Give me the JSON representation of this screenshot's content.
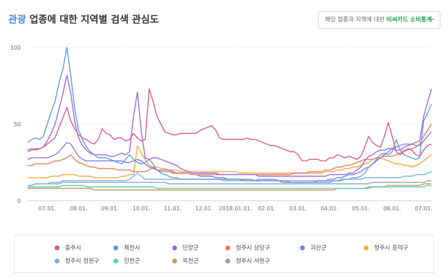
{
  "header": {
    "title_keyword": "관광",
    "title_rest": " 업종에 대한 지역별 검색 관심도",
    "link_prefix": "해당 업종과 지역에 대한 ",
    "link_highlight": "비씨카드 소비통계",
    "link_arrow": ">"
  },
  "chart_data": {
    "type": "line",
    "title": "",
    "xlabel": "",
    "ylabel": "",
    "ylim": [
      0,
      100
    ],
    "yticks": [
      0,
      50,
      100
    ],
    "x_tick_labels": [
      "07.01.",
      "08.01.",
      "09.01.",
      "10.01.",
      "11.01.",
      "12.01.",
      "2018.01.01.",
      "02.01.",
      "03.01.",
      "04.01.",
      "05.01.",
      "06.01.",
      "07.01."
    ],
    "x_tick_index": [
      5,
      13,
      21,
      29,
      37,
      45,
      53,
      61,
      69,
      77,
      85,
      93,
      101
    ],
    "grid": "horizontal-dashed",
    "legend_position": "bottom",
    "series": [
      {
        "name": "충주시",
        "color": "#d9568a",
        "values": [
          33,
          34,
          33,
          34,
          35,
          37,
          39,
          41,
          48,
          54,
          61,
          52,
          47,
          43,
          41,
          40,
          38,
          37,
          40,
          47,
          44,
          43,
          40,
          41,
          41,
          39,
          40,
          44,
          41,
          39,
          40,
          73,
          65,
          55,
          50,
          45,
          44,
          43,
          43,
          44,
          44,
          44,
          44,
          44,
          46,
          47,
          48,
          49,
          46,
          41,
          40,
          40,
          40,
          40,
          40,
          40,
          41,
          40,
          40,
          39,
          38,
          37,
          36,
          36,
          35,
          34,
          33,
          32,
          32,
          30,
          26,
          26,
          27,
          27,
          27,
          26,
          26,
          28,
          28,
          30,
          29,
          28,
          29,
          28,
          27,
          29,
          35,
          42,
          38,
          36,
          35,
          42,
          51,
          42,
          32,
          30,
          32,
          34,
          33,
          30,
          29,
          33,
          36,
          37
        ]
      },
      {
        "name": "제천시",
        "color": "#5b9be0",
        "values": [
          38,
          40,
          41,
          40,
          42,
          50,
          58,
          65,
          77,
          86,
          100,
          82,
          60,
          46,
          40,
          35,
          32,
          30,
          28,
          28,
          28,
          27,
          26,
          25,
          24,
          27,
          30,
          27,
          25,
          24,
          25,
          27,
          24,
          20,
          18,
          17,
          16,
          15,
          15,
          14,
          14,
          14,
          14,
          14,
          14,
          14,
          14,
          14,
          14,
          14,
          14,
          14,
          14,
          14,
          14,
          13,
          13,
          13,
          13,
          14,
          14,
          14,
          14,
          14,
          13,
          13,
          13,
          12,
          12,
          12,
          12,
          12,
          12,
          12,
          12,
          12,
          12,
          12,
          13,
          13,
          13,
          14,
          14,
          15,
          15,
          16,
          18,
          22,
          24,
          27,
          30,
          31,
          30,
          32,
          40,
          33,
          30,
          29,
          28,
          27,
          28,
          52,
          57,
          63
        ]
      },
      {
        "name": "단양군",
        "color": "#9b65dd",
        "values": [
          32,
          33,
          34,
          34,
          35,
          39,
          44,
          50,
          60,
          70,
          82,
          70,
          52,
          41,
          36,
          33,
          31,
          30,
          30,
          30,
          30,
          29,
          29,
          30,
          31,
          30,
          32,
          55,
          71,
          45,
          28,
          27,
          28,
          28,
          27,
          26,
          25,
          24,
          23,
          21,
          20,
          19,
          18,
          18,
          18,
          18,
          18,
          18,
          18,
          17,
          17,
          17,
          17,
          17,
          17,
          17,
          17,
          17,
          17,
          16,
          16,
          16,
          16,
          16,
          16,
          16,
          16,
          16,
          16,
          16,
          16,
          16,
          16,
          16,
          16,
          16,
          16,
          17,
          17,
          17,
          17,
          17,
          18,
          18,
          20,
          22,
          26,
          29,
          30,
          32,
          33,
          33,
          34,
          34,
          33,
          33,
          35,
          36,
          37,
          38,
          39,
          55,
          64,
          73
        ]
      },
      {
        "name": "청주시 상당구",
        "color": "#e8775f",
        "values": [
          23,
          23,
          24,
          24,
          24,
          24,
          25,
          26,
          26,
          27,
          28,
          30,
          27,
          25,
          24,
          23,
          22,
          22,
          21,
          21,
          21,
          21,
          21,
          20,
          20,
          20,
          20,
          19,
          19,
          19,
          19,
          20,
          22,
          20,
          19,
          19,
          19,
          18,
          18,
          18,
          18,
          18,
          17,
          17,
          17,
          17,
          17,
          17,
          17,
          17,
          17,
          17,
          17,
          17,
          17,
          17,
          17,
          17,
          17,
          17,
          17,
          17,
          17,
          17,
          17,
          17,
          17,
          17,
          18,
          18,
          18,
          18,
          19,
          19,
          19,
          19,
          20,
          20,
          21,
          22,
          22,
          23,
          23,
          24,
          25,
          26,
          27,
          27,
          27,
          28,
          28,
          29,
          29,
          29,
          30,
          31,
          33,
          33,
          34,
          35,
          37,
          42,
          46,
          50
        ]
      },
      {
        "name": "괴산군",
        "color": "#7b7be0",
        "values": [
          27,
          28,
          28,
          28,
          28,
          28,
          29,
          30,
          32,
          35,
          38,
          37,
          33,
          29,
          27,
          26,
          26,
          26,
          26,
          26,
          26,
          26,
          26,
          26,
          26,
          25,
          25,
          26,
          27,
          26,
          24,
          22,
          21,
          20,
          20,
          20,
          20,
          19,
          18,
          18,
          18,
          18,
          17,
          17,
          16,
          16,
          16,
          16,
          15,
          15,
          15,
          14,
          14,
          14,
          14,
          14,
          14,
          14,
          13,
          13,
          13,
          13,
          13,
          13,
          13,
          12,
          12,
          12,
          12,
          12,
          12,
          12,
          12,
          12,
          13,
          13,
          13,
          14,
          14,
          15,
          15,
          16,
          17,
          17,
          18,
          19,
          21,
          22,
          24,
          26,
          28,
          30,
          32,
          34,
          35,
          36,
          37,
          37,
          37,
          36,
          36,
          39,
          42,
          45
        ]
      },
      {
        "name": "청주시 흥덕구",
        "color": "#efa93d",
        "values": [
          15,
          15,
          15,
          15,
          15,
          15,
          16,
          16,
          16,
          17,
          17,
          17,
          17,
          16,
          16,
          16,
          16,
          15,
          15,
          15,
          15,
          15,
          15,
          15,
          16,
          16,
          17,
          17,
          36,
          31,
          27,
          23,
          22,
          22,
          21,
          21,
          20,
          20,
          20,
          19,
          19,
          19,
          19,
          19,
          19,
          19,
          19,
          19,
          19,
          19,
          19,
          19,
          19,
          19,
          18,
          18,
          18,
          18,
          18,
          18,
          18,
          18,
          18,
          18,
          18,
          18,
          18,
          18,
          18,
          18,
          18,
          18,
          18,
          18,
          18,
          18,
          19,
          19,
          19,
          20,
          20,
          21,
          21,
          22,
          22,
          23,
          24,
          25,
          27,
          28,
          28,
          27,
          26,
          25,
          24,
          24,
          23,
          23,
          22,
          23,
          24,
          26,
          28,
          30
        ]
      },
      {
        "name": "청주시 청원구",
        "color": "#72aee6",
        "values": [
          10,
          10,
          11,
          11,
          11,
          11,
          12,
          12,
          12,
          13,
          13,
          13,
          13,
          13,
          13,
          13,
          13,
          13,
          13,
          13,
          13,
          13,
          13,
          13,
          13,
          13,
          14,
          16,
          18,
          16,
          14,
          14,
          14,
          14,
          14,
          14,
          14,
          14,
          14,
          14,
          14,
          14,
          14,
          14,
          14,
          14,
          14,
          14,
          14,
          14,
          13,
          13,
          13,
          13,
          13,
          13,
          13,
          13,
          13,
          13,
          13,
          13,
          13,
          13,
          13,
          13,
          13,
          13,
          13,
          13,
          13,
          13,
          13,
          13,
          13,
          13,
          13,
          13,
          13,
          13,
          14,
          14,
          14,
          14,
          14,
          14,
          15,
          15,
          15,
          15,
          15,
          15,
          15,
          15,
          15,
          15,
          16,
          16,
          16,
          17,
          17,
          17,
          18,
          19
        ]
      },
      {
        "name": "진천군",
        "color": "#5bcdb7",
        "values": [
          9,
          9,
          9,
          9,
          9,
          9,
          9,
          9,
          9,
          10,
          10,
          10,
          10,
          10,
          10,
          9,
          9,
          9,
          9,
          9,
          9,
          9,
          9,
          9,
          9,
          9,
          9,
          9,
          9,
          9,
          9,
          9,
          9,
          8,
          8,
          8,
          8,
          8,
          8,
          8,
          8,
          8,
          8,
          8,
          8,
          8,
          8,
          8,
          8,
          8,
          8,
          8,
          8,
          8,
          8,
          8,
          8,
          8,
          8,
          8,
          8,
          8,
          8,
          8,
          8,
          8,
          8,
          8,
          8,
          8,
          8,
          8,
          8,
          8,
          8,
          8,
          8,
          8,
          8,
          8,
          8,
          8,
          8,
          8,
          8,
          8,
          8,
          8,
          9,
          9,
          9,
          9,
          9,
          9,
          9,
          9,
          9,
          9,
          9,
          9,
          9,
          9,
          10,
          10
        ]
      },
      {
        "name": "옥천군",
        "color": "#c39a55",
        "values": [
          8,
          8,
          8,
          8,
          8,
          8,
          8,
          8,
          8,
          8,
          8,
          8,
          8,
          8,
          8,
          8,
          8,
          7,
          7,
          7,
          7,
          7,
          7,
          7,
          7,
          7,
          7,
          7,
          7,
          7,
          7,
          7,
          7,
          7,
          7,
          7,
          7,
          7,
          7,
          7,
          7,
          7,
          7,
          7,
          7,
          7,
          7,
          7,
          7,
          7,
          7,
          7,
          7,
          7,
          7,
          7,
          7,
          7,
          7,
          7,
          7,
          7,
          7,
          7,
          7,
          7,
          7,
          7,
          7,
          7,
          7,
          7,
          7,
          7,
          7,
          7,
          7,
          7,
          7,
          8,
          8,
          8,
          8,
          8,
          8,
          8,
          8,
          9,
          9,
          9,
          9,
          9,
          10,
          10,
          10,
          10,
          10,
          10,
          10,
          10,
          10,
          11,
          11,
          11
        ]
      },
      {
        "name": "청주시 서원구",
        "color": "#8ea4b8",
        "values": [
          10,
          10,
          11,
          11,
          11,
          11,
          11,
          11,
          11,
          12,
          12,
          12,
          12,
          12,
          12,
          12,
          12,
          12,
          12,
          12,
          12,
          12,
          12,
          12,
          12,
          12,
          12,
          12,
          12,
          12,
          12,
          12,
          12,
          12,
          12,
          12,
          11,
          11,
          11,
          11,
          11,
          11,
          11,
          11,
          11,
          11,
          11,
          11,
          11,
          11,
          11,
          11,
          11,
          11,
          11,
          11,
          11,
          11,
          11,
          11,
          11,
          11,
          11,
          11,
          11,
          11,
          11,
          11,
          11,
          11,
          11,
          11,
          11,
          11,
          11,
          11,
          11,
          11,
          11,
          11,
          11,
          11,
          11,
          11,
          11,
          11,
          11,
          11,
          12,
          12,
          12,
          12,
          12,
          12,
          12,
          12,
          12,
          12,
          12,
          12,
          12,
          12,
          13,
          13
        ]
      }
    ]
  }
}
